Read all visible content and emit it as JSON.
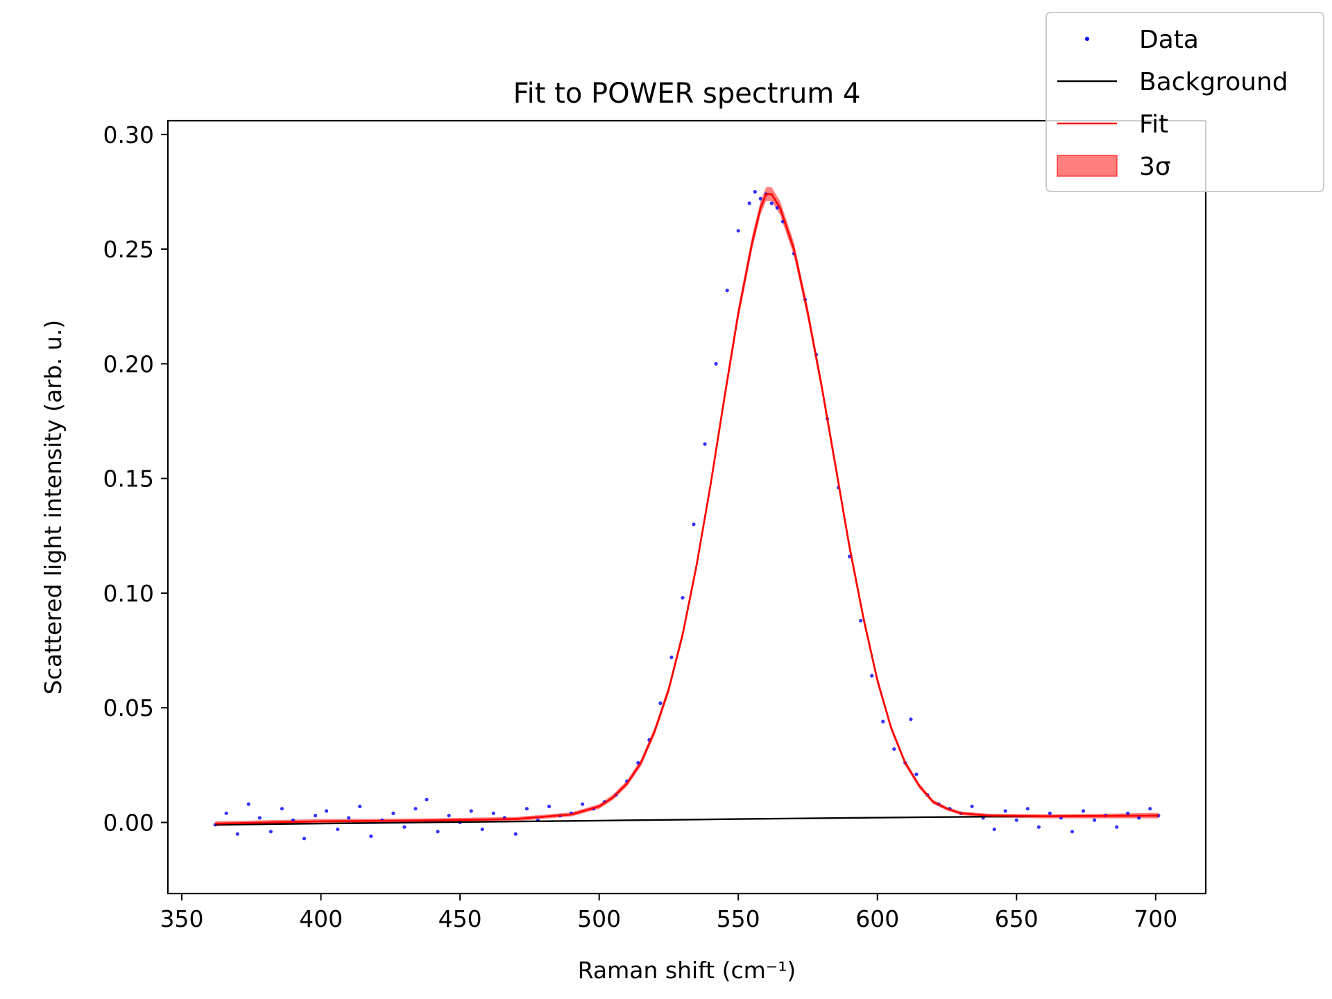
{
  "chart_data": {
    "type": "scatter",
    "title": "Fit to POWER spectrum 4",
    "xlabel": "Raman shift (cm⁻¹)",
    "ylabel": "Scattered light intensity (arb. u.)",
    "xlim": [
      345,
      718
    ],
    "ylim": [
      -0.031,
      0.306
    ],
    "xticks": [
      350,
      400,
      450,
      500,
      550,
      600,
      650,
      700
    ],
    "yticks": [
      0.0,
      0.05,
      0.1,
      0.15,
      0.2,
      0.25,
      0.3
    ],
    "xtick_labels": [
      "350",
      "400",
      "450",
      "500",
      "550",
      "600",
      "650",
      "700"
    ],
    "ytick_labels": [
      "0.00",
      "0.05",
      "0.10",
      "0.15",
      "0.20",
      "0.25",
      "0.30"
    ],
    "grid": false,
    "legend_position": "top-right",
    "series": [
      {
        "name": "Data",
        "kind": "points",
        "color": "#0000ff",
        "x": [
          362,
          366,
          370,
          374,
          378,
          382,
          386,
          390,
          394,
          398,
          402,
          406,
          410,
          414,
          418,
          422,
          426,
          430,
          434,
          438,
          442,
          446,
          450,
          454,
          458,
          462,
          466,
          470,
          474,
          478,
          482,
          486,
          490,
          494,
          498,
          502,
          506,
          510,
          514,
          518,
          522,
          526,
          530,
          534,
          538,
          542,
          546,
          550,
          554,
          556,
          558,
          560,
          562,
          564,
          566,
          570,
          574,
          578,
          582,
          586,
          590,
          594,
          598,
          602,
          606,
          610,
          612,
          614,
          618,
          622,
          626,
          630,
          634,
          638,
          642,
          646,
          650,
          654,
          658,
          662,
          666,
          670,
          674,
          678,
          682,
          686,
          690,
          694,
          698,
          701
        ],
        "y": [
          -0.001,
          0.004,
          -0.005,
          0.008,
          0.002,
          -0.004,
          0.006,
          0.001,
          -0.007,
          0.003,
          0.005,
          -0.003,
          0.002,
          0.007,
          -0.006,
          0.001,
          0.004,
          -0.002,
          0.006,
          0.01,
          -0.004,
          0.003,
          0.0,
          0.005,
          -0.003,
          0.004,
          0.002,
          -0.005,
          0.006,
          0.001,
          0.007,
          0.003,
          0.004,
          0.008,
          0.006,
          0.009,
          0.012,
          0.018,
          0.026,
          0.036,
          0.052,
          0.072,
          0.098,
          0.13,
          0.165,
          0.2,
          0.232,
          0.258,
          0.27,
          0.275,
          0.272,
          0.274,
          0.27,
          0.268,
          0.262,
          0.248,
          0.228,
          0.204,
          0.176,
          0.146,
          0.116,
          0.088,
          0.064,
          0.044,
          0.032,
          0.026,
          0.045,
          0.021,
          0.012,
          0.008,
          0.006,
          0.004,
          0.007,
          0.002,
          -0.003,
          0.005,
          0.001,
          0.006,
          -0.002,
          0.004,
          0.002,
          -0.004,
          0.005,
          0.001,
          0.003,
          -0.002,
          0.004,
          0.002,
          0.006,
          0.003
        ]
      },
      {
        "name": "Background",
        "kind": "line",
        "color": "#000000",
        "x": [
          362,
          450,
          500,
          550,
          600,
          616,
          650,
          701
        ],
        "y": [
          -0.001,
          0.0002,
          0.0008,
          0.0015,
          0.0021,
          0.0023,
          0.0026,
          0.003
        ]
      },
      {
        "name": "Fit",
        "kind": "line",
        "color": "#ff0000",
        "x": [
          362,
          400,
          440,
          470,
          490,
          500,
          505,
          510,
          515,
          520,
          525,
          530,
          535,
          540,
          545,
          550,
          555,
          558,
          560,
          562,
          565,
          570,
          575,
          580,
          585,
          590,
          595,
          600,
          605,
          610,
          615,
          620,
          625,
          630,
          640,
          660,
          680,
          701
        ],
        "y": [
          -0.0005,
          0.0005,
          0.0009,
          0.0015,
          0.0035,
          0.007,
          0.011,
          0.017,
          0.026,
          0.04,
          0.058,
          0.082,
          0.112,
          0.147,
          0.185,
          0.222,
          0.253,
          0.268,
          0.274,
          0.274,
          0.268,
          0.25,
          0.222,
          0.19,
          0.155,
          0.12,
          0.089,
          0.062,
          0.041,
          0.026,
          0.016,
          0.009,
          0.006,
          0.004,
          0.003,
          0.0027,
          0.0028,
          0.003
        ]
      },
      {
        "name": "3σ",
        "kind": "band",
        "color": "#ff0000",
        "x": [
          362,
          400,
          440,
          470,
          490,
          500,
          505,
          510,
          515,
          520,
          525,
          530,
          535,
          540,
          545,
          550,
          555,
          558,
          560,
          562,
          565,
          570,
          575,
          580,
          585,
          590,
          595,
          600,
          605,
          610,
          615,
          620,
          625,
          630,
          640,
          660,
          680,
          701
        ],
        "y_low": [
          -0.0015,
          -0.0005,
          0.0,
          0.0006,
          0.0026,
          0.006,
          0.0098,
          0.0157,
          0.0245,
          0.0383,
          0.0562,
          0.08,
          0.1098,
          0.1447,
          0.1823,
          0.2191,
          0.25,
          0.2651,
          0.271,
          0.271,
          0.265,
          0.247,
          0.2192,
          0.1874,
          0.1524,
          0.1176,
          0.0868,
          0.0602,
          0.0396,
          0.0248,
          0.0149,
          0.0081,
          0.0052,
          0.0032,
          0.0022,
          0.0018,
          0.0018,
          0.0018
        ],
        "y_high": [
          0.0005,
          0.0015,
          0.0018,
          0.0024,
          0.0044,
          0.008,
          0.0122,
          0.0183,
          0.0275,
          0.0417,
          0.0598,
          0.084,
          0.1142,
          0.1493,
          0.1877,
          0.2249,
          0.256,
          0.2709,
          0.277,
          0.277,
          0.271,
          0.253,
          0.2248,
          0.1926,
          0.1576,
          0.1224,
          0.0912,
          0.0638,
          0.0424,
          0.0272,
          0.0171,
          0.0099,
          0.0068,
          0.0048,
          0.0038,
          0.0036,
          0.0038,
          0.0042
        ]
      }
    ],
    "legend": [
      {
        "label": "Data",
        "kind": "points",
        "color": "#0000ff"
      },
      {
        "label": "Background",
        "kind": "line",
        "color": "#000000"
      },
      {
        "label": "Fit",
        "kind": "line",
        "color": "#ff0000"
      },
      {
        "label": "3σ",
        "kind": "band",
        "color": "#ff0000"
      }
    ]
  }
}
